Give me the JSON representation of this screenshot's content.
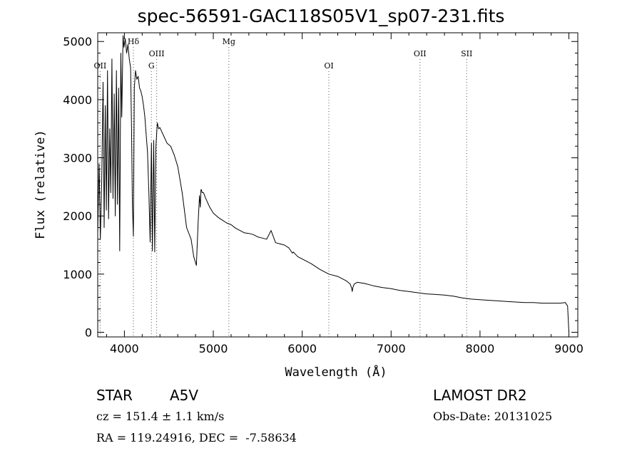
{
  "header": {
    "title": "spec-56591-GAC118S05V1_sp07-231.fits"
  },
  "footer": {
    "class_label": "STAR",
    "subclass": "A5V",
    "survey": "LAMOST DR2",
    "cz": "cz = 151.4 ± 1.1 km/s",
    "obs_date": "Obs-Date: 20131025",
    "coords": "RA = 119.24916, DEC =  -7.58634"
  },
  "chart_data": {
    "type": "line",
    "xlabel": "Wavelength (Å)",
    "ylabel": "Flux (relative)",
    "xlim": [
      3700,
      9100
    ],
    "ylim": [
      -80,
      5150
    ],
    "xticks": [
      4000,
      5000,
      6000,
      7000,
      8000,
      9000
    ],
    "yticks": [
      0,
      1000,
      2000,
      3000,
      4000,
      5000
    ],
    "line_color": "#000000",
    "lines": [
      {
        "label": "OII",
        "x": 3727,
        "row": 2
      },
      {
        "label": "Hδ",
        "x": 4101,
        "row": 0
      },
      {
        "label": "G",
        "x": 4304,
        "row": 2
      },
      {
        "label": "OIII",
        "x": 4363,
        "row": 1
      },
      {
        "label": "Mg",
        "x": 5175,
        "row": 0
      },
      {
        "label": "OI",
        "x": 6300,
        "row": 2
      },
      {
        "label": "OII",
        "x": 7325,
        "row": 1
      },
      {
        "label": "SII",
        "x": 7850,
        "row": 1
      }
    ],
    "series": [
      {
        "x": [
          3700,
          3715,
          3730,
          3745,
          3760,
          3772,
          3785,
          3797,
          3810,
          3822,
          3835,
          3847,
          3860,
          3872,
          3885,
          3897,
          3910,
          3922,
          3935,
          3947,
          3960,
          3970,
          3985,
          3995,
          4010,
          4025,
          4040,
          4055,
          4070,
          4080,
          4090,
          4101,
          4112,
          4125,
          4140,
          4155,
          4170,
          4185,
          4200,
          4215,
          4230,
          4245,
          4260,
          4275,
          4290,
          4304,
          4315,
          4330,
          4341,
          4355,
          4370,
          4385,
          4400,
          4420,
          4450,
          4480,
          4520,
          4560,
          4600,
          4650,
          4700,
          4750,
          4780,
          4810,
          4830,
          4845,
          4855,
          4861,
          4867,
          4875,
          4890,
          4910,
          4930,
          4960,
          5000,
          5050,
          5100,
          5150,
          5200,
          5250,
          5300,
          5350,
          5400,
          5450,
          5500,
          5550,
          5600,
          5650,
          5700,
          5750,
          5800,
          5850,
          5890,
          5900,
          5950,
          6000,
          6100,
          6200,
          6300,
          6400,
          6500,
          6540,
          6556,
          6563,
          6570,
          6585,
          6620,
          6700,
          6800,
          6900,
          7000,
          7100,
          7200,
          7300,
          7400,
          7500,
          7600,
          7700,
          7800,
          7900,
          8000,
          8100,
          8200,
          8300,
          8400,
          8500,
          8600,
          8700,
          8800,
          8900,
          8960,
          8985,
          9000
        ],
        "y": [
          1700,
          2900,
          1600,
          2600,
          4300,
          1800,
          3900,
          2100,
          4500,
          1950,
          3500,
          2400,
          4700,
          2300,
          4100,
          2000,
          4500,
          2200,
          4200,
          1400,
          4800,
          3700,
          5100,
          4900,
          5050,
          4800,
          4950,
          4700,
          4550,
          3500,
          2200,
          1650,
          4200,
          4500,
          4350,
          4400,
          4200,
          4150,
          4050,
          3900,
          3700,
          3400,
          3100,
          2400,
          1550,
          3250,
          1400,
          3300,
          1380,
          3200,
          3600,
          3500,
          3520,
          3450,
          3350,
          3250,
          3200,
          3050,
          2850,
          2400,
          1800,
          1600,
          1300,
          1150,
          1900,
          2350,
          2150,
          2450,
          2450,
          2400,
          2400,
          2320,
          2250,
          2150,
          2050,
          1980,
          1930,
          1880,
          1850,
          1790,
          1750,
          1710,
          1700,
          1680,
          1640,
          1620,
          1600,
          1750,
          1540,
          1520,
          1500,
          1450,
          1360,
          1380,
          1300,
          1260,
          1180,
          1080,
          1000,
          960,
          880,
          830,
          760,
          700,
          770,
          830,
          860,
          840,
          800,
          770,
          750,
          720,
          700,
          680,
          660,
          650,
          640,
          620,
          590,
          570,
          560,
          550,
          540,
          530,
          520,
          510,
          510,
          500,
          500,
          500,
          510,
          450,
          0
        ]
      }
    ]
  }
}
